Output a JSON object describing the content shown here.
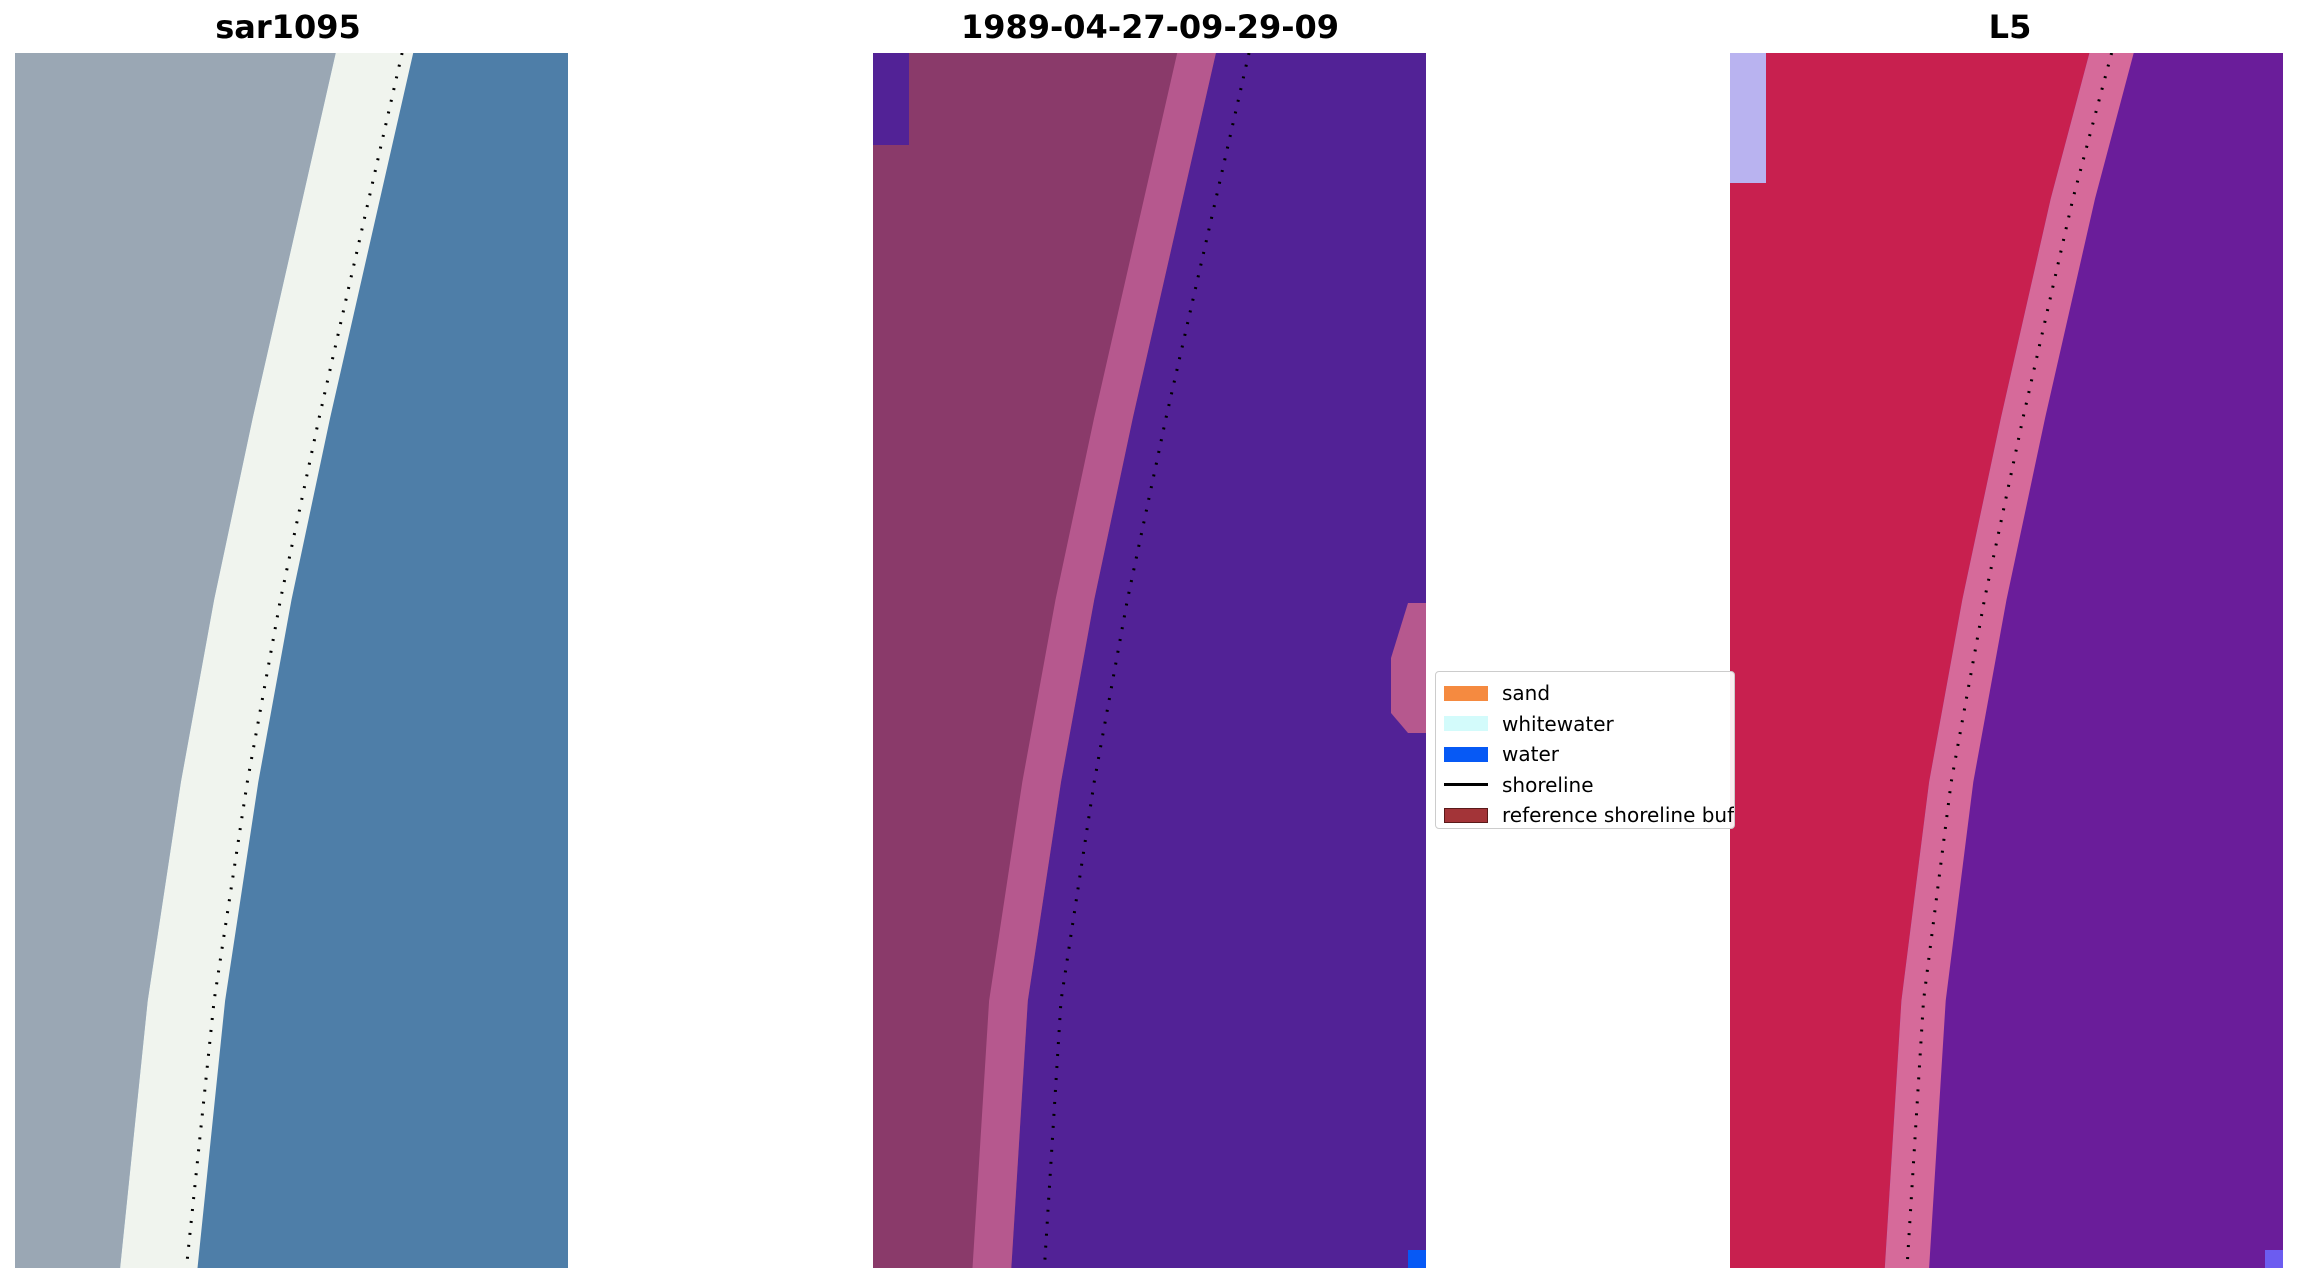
{
  "chart_data": [
    {
      "type": "heatmap",
      "title": "sar1095",
      "description_colors": {
        "land": "#9aa7b4",
        "beach": "#f0f4ee",
        "sea": "#4e7ea8"
      },
      "shoreline": {
        "style": "dotted",
        "color": "#000000",
        "points": [
          [
            0.7,
            0.0
          ],
          [
            0.64,
            0.12
          ],
          [
            0.55,
            0.3
          ],
          [
            0.48,
            0.45
          ],
          [
            0.42,
            0.6
          ],
          [
            0.36,
            0.78
          ],
          [
            0.31,
            1.0
          ]
        ]
      }
    },
    {
      "type": "heatmap",
      "title": "1989-04-27-09-29-09",
      "classes": {
        "sand": "#f58a40",
        "whitewater": "#d3fbfb",
        "water": "#0659f5",
        "reference_buffer": "#8e2f45",
        "sea": "#522296",
        "land": "#8a3a6a",
        "buffer_edge": "#b6588e"
      },
      "shoreline": {
        "style": "dotted",
        "color": "#000000",
        "points": [
          [
            0.68,
            0.0
          ],
          [
            0.62,
            0.12
          ],
          [
            0.53,
            0.3
          ],
          [
            0.46,
            0.45
          ],
          [
            0.4,
            0.6
          ],
          [
            0.34,
            0.78
          ],
          [
            0.31,
            1.0
          ]
        ]
      }
    },
    {
      "type": "heatmap",
      "title": "L5",
      "description_colors": {
        "land": "#c8204f",
        "coast": "#d66a9a",
        "sea": "#6a1d9a"
      },
      "shoreline": {
        "style": "dotted",
        "color": "#000000",
        "points": [
          [
            0.69,
            0.0
          ],
          [
            0.62,
            0.12
          ],
          [
            0.53,
            0.3
          ],
          [
            0.46,
            0.45
          ],
          [
            0.4,
            0.6
          ],
          [
            0.35,
            0.78
          ],
          [
            0.32,
            1.0
          ]
        ]
      }
    }
  ],
  "legend": {
    "items": [
      {
        "label": "sand",
        "kind": "patch",
        "color": "#f58a40"
      },
      {
        "label": "whitewater",
        "kind": "patch",
        "color": "#d3fbfb"
      },
      {
        "label": "water",
        "kind": "patch",
        "color": "#0659f5"
      },
      {
        "label": "shoreline",
        "kind": "line",
        "color": "#000000"
      },
      {
        "label": "reference shoreline buffer",
        "kind": "patch",
        "color": "#a33438"
      }
    ]
  }
}
